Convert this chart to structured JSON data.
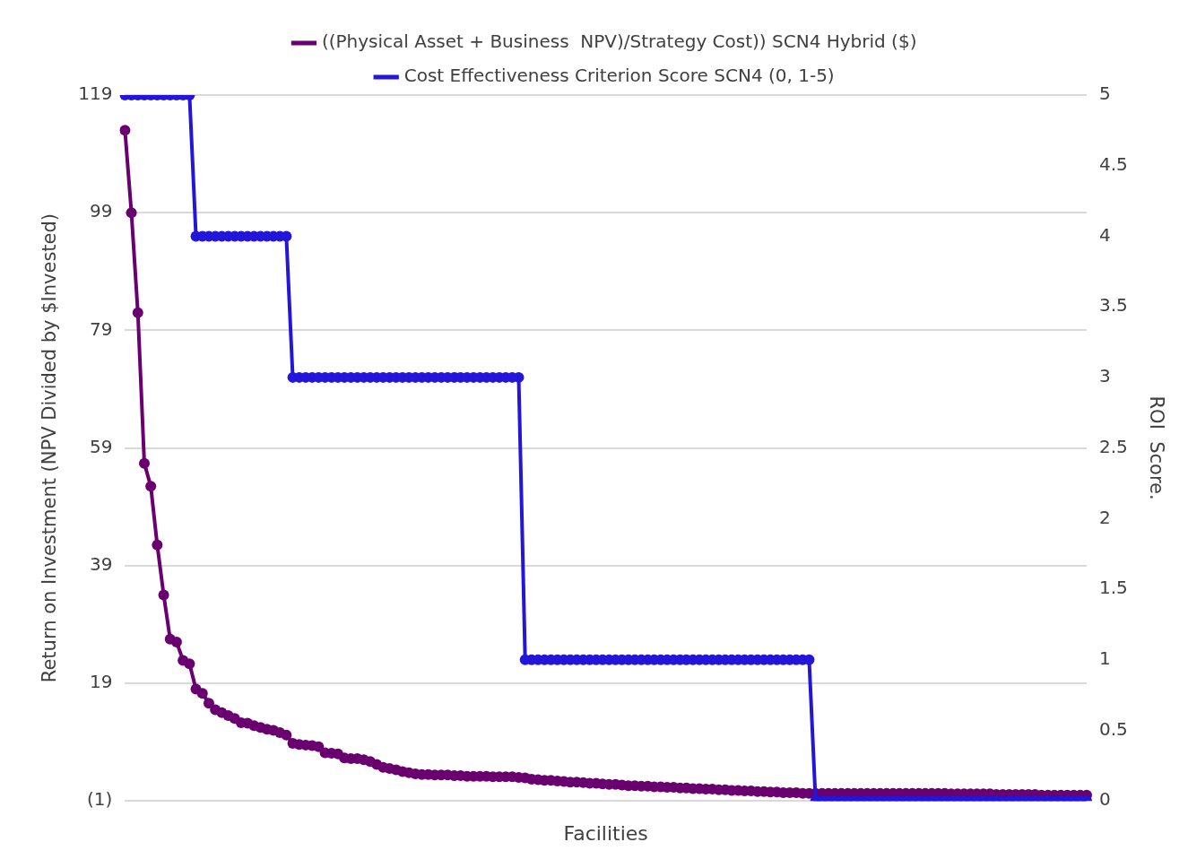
{
  "chart_data": {
    "type": "line",
    "xlabel": "Facilities",
    "ylabel": "Return on Investment (NPV Divided by $Invested)",
    "y2label": "ROI  Score.",
    "categories": [
      null,
      null,
      null,
      null,
      null,
      null,
      null,
      null,
      null,
      null,
      null,
      null,
      null,
      null,
      null,
      null,
      null,
      null,
      null,
      null,
      null,
      null,
      null,
      null,
      null,
      null,
      null,
      null,
      null,
      null,
      null,
      null,
      null,
      null,
      null,
      null,
      null,
      null,
      null,
      null,
      null,
      null,
      null,
      null,
      null,
      null,
      null,
      null,
      null,
      null,
      null,
      null,
      null,
      null,
      null,
      null,
      null,
      null,
      null,
      null,
      null,
      null,
      null,
      null,
      null,
      null,
      null,
      null,
      null,
      null,
      null,
      null,
      null,
      null,
      null,
      null,
      null,
      null,
      null,
      null,
      null,
      null,
      null,
      null,
      null,
      null,
      null,
      null,
      null,
      null,
      null,
      null,
      null,
      null,
      null,
      null,
      null,
      null,
      null,
      null,
      null,
      null,
      null,
      null,
      null,
      null,
      null,
      null,
      null,
      null,
      null,
      null,
      null,
      null,
      null,
      null,
      null,
      null,
      null,
      null,
      null,
      null,
      null,
      null,
      null,
      null,
      null,
      null,
      null,
      null,
      null,
      null,
      null,
      null,
      null,
      null,
      null,
      null,
      null,
      null,
      null,
      null,
      null,
      null,
      null,
      null,
      null,
      null,
      null,
      null
    ],
    "series": [
      {
        "name": "((Physical Asset + Business  NPV)/Strategy Cost)) SCN4 Hybrid ($)",
        "color": "#6a0070",
        "values": [
          113,
          99,
          82,
          56.4,
          52.5,
          42.5,
          34,
          26.5,
          26,
          22.9,
          22.3,
          18,
          17.3,
          15.6,
          14.5,
          14,
          13.5,
          13,
          12.3,
          12.2,
          11.8,
          11.5,
          11.2,
          11,
          10.6,
          10.2,
          8.8,
          8.6,
          8.5,
          8.4,
          8.2,
          7.2,
          7.1,
          7,
          6.3,
          6.2,
          6.2,
          6,
          5.7,
          5.2,
          4.7,
          4.5,
          4.3,
          4,
          3.8,
          3.6,
          3.5,
          3.5,
          3.4,
          3.4,
          3.4,
          3.3,
          3.3,
          3.2,
          3.2,
          3.2,
          3.2,
          3.1,
          3.1,
          3.1,
          3.1,
          3,
          2.9,
          2.7,
          2.6,
          2.5,
          2.5,
          2.4,
          2.3,
          2.2,
          2.2,
          2.1,
          2,
          2,
          1.9,
          1.8,
          1.8,
          1.7,
          1.6,
          1.6,
          1.5,
          1.5,
          1.4,
          1.4,
          1.3,
          1.3,
          1.2,
          1.2,
          1.1,
          1.1,
          1,
          1,
          0.9,
          0.9,
          0.8,
          0.8,
          0.7,
          0.7,
          0.6,
          0.6,
          0.5,
          0.5,
          0.4,
          0.4,
          0.4,
          0.3,
          0.3,
          0.3,
          0.3,
          0.3,
          0.3,
          0.3,
          0.3,
          0.3,
          0.3,
          0.3,
          0.3,
          0.3,
          0.3,
          0.3,
          0.3,
          0.3,
          0.3,
          0.3,
          0.3,
          0.3,
          0.3,
          0.3,
          0.2,
          0.2,
          0.2,
          0.2,
          0.2,
          0.2,
          0.2,
          0.1,
          0.1,
          0.1,
          0.1,
          0.1,
          0.1,
          0.1,
          0,
          0,
          0,
          0,
          0,
          0,
          0,
          0
        ]
      },
      {
        "name": "Cost Effectiveness Criterion Score SCN4 (0, 1-5)",
        "color": "#2316d8",
        "axis": "y2",
        "values": [
          5,
          5,
          5,
          5,
          5,
          5,
          5,
          5,
          5,
          5,
          5,
          4,
          4,
          4,
          4,
          4,
          4,
          4,
          4,
          4,
          4,
          4,
          4,
          4,
          4,
          4,
          3,
          3,
          3,
          3,
          3,
          3,
          3,
          3,
          3,
          3,
          3,
          3,
          3,
          3,
          3,
          3,
          3,
          3,
          3,
          3,
          3,
          3,
          3,
          3,
          3,
          3,
          3,
          3,
          3,
          3,
          3,
          3,
          3,
          3,
          3,
          3,
          1,
          1,
          1,
          1,
          1,
          1,
          1,
          1,
          1,
          1,
          1,
          1,
          1,
          1,
          1,
          1,
          1,
          1,
          1,
          1,
          1,
          1,
          1,
          1,
          1,
          1,
          1,
          1,
          1,
          1,
          1,
          1,
          1,
          1,
          1,
          1,
          1,
          1,
          1,
          1,
          1,
          1,
          1,
          1,
          1,
          0,
          0,
          0,
          0,
          0,
          0,
          0,
          0,
          0,
          0,
          0,
          0,
          0,
          0,
          0,
          0,
          0,
          0,
          0,
          0,
          0,
          0,
          0,
          0,
          0,
          0,
          0,
          0,
          0,
          0,
          0,
          0,
          0,
          0,
          0,
          0,
          0,
          0,
          0,
          0,
          0,
          0,
          0
        ]
      }
    ],
    "ylim": [
      -1,
      119
    ],
    "yticks": [
      {
        "value": -1,
        "label": "(1)"
      },
      19,
      39,
      59,
      79,
      99,
      119
    ],
    "y2lim": [
      0,
      5
    ],
    "y2ticks": [
      0,
      0.5,
      1,
      1.5,
      2,
      2.5,
      3,
      3.5,
      4,
      4.5,
      5
    ],
    "grid": "y",
    "legend": "top",
    "marker": "circle",
    "line_style": "solid"
  }
}
